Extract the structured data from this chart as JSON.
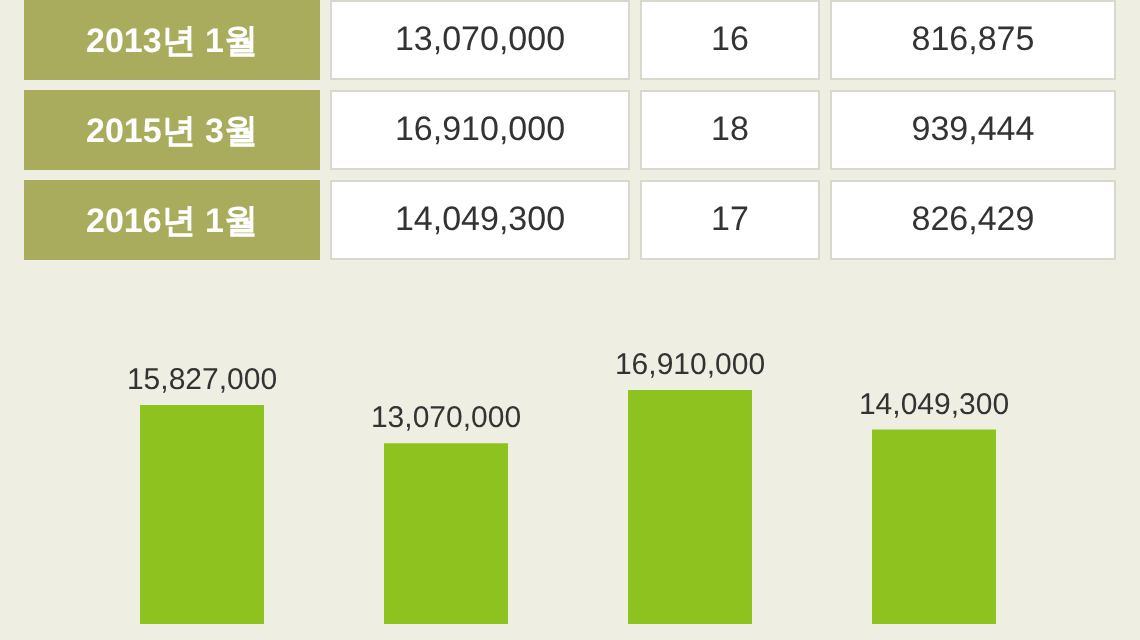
{
  "chart_data": [
    {
      "type": "other",
      "annotations": [
        "2013년 1월",
        "13,070,000",
        "16",
        "816,875",
        "2015년 3월",
        "16,910,000",
        "18",
        "939,444",
        "2016년 1월",
        "14,049,300",
        "17",
        "826,429"
      ]
    },
    {
      "type": "bar",
      "categories": [
        null,
        null,
        null,
        null
      ],
      "values": [
        15827000,
        13070000,
        16910000,
        14049300
      ],
      "color": "#8dc21f",
      "value_labels": [
        "15,827,000",
        "13,070,000",
        "16,910,000",
        "14,049,300"
      ]
    }
  ]
}
